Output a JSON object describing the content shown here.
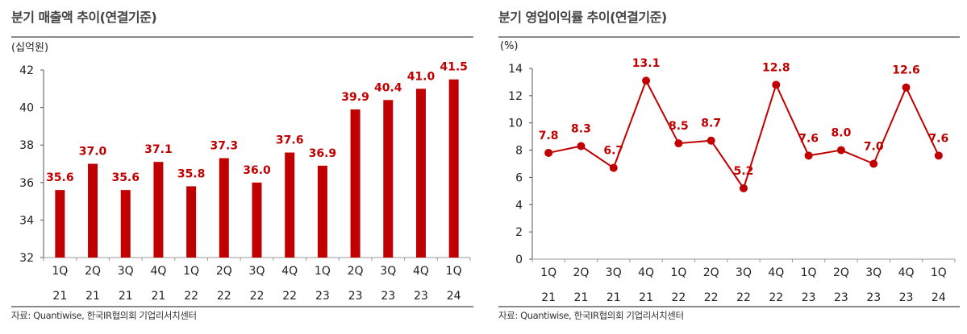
{
  "chart_data": [
    {
      "type": "bar",
      "title": "분기 매출액 추이(연결기준)",
      "ylabel": "(십억원)",
      "categories": [
        [
          "1Q",
          "21"
        ],
        [
          "2Q",
          "21"
        ],
        [
          "3Q",
          "21"
        ],
        [
          "4Q",
          "21"
        ],
        [
          "1Q",
          "22"
        ],
        [
          "2Q",
          "22"
        ],
        [
          "3Q",
          "22"
        ],
        [
          "4Q",
          "22"
        ],
        [
          "1Q",
          "23"
        ],
        [
          "2Q",
          "23"
        ],
        [
          "3Q",
          "23"
        ],
        [
          "4Q",
          "23"
        ],
        [
          "1Q",
          "24"
        ]
      ],
      "values": [
        35.6,
        37.0,
        35.6,
        37.1,
        35.8,
        37.3,
        36.0,
        37.6,
        36.9,
        39.9,
        40.4,
        41.0,
        41.5
      ],
      "labels": [
        "35.6",
        "37.0",
        "35.6",
        "37.1",
        "35.8",
        "37.3",
        "36.0",
        "37.6",
        "36.9",
        "39.9",
        "40.4",
        "41.0",
        "41.5"
      ],
      "ylim": [
        32,
        42
      ],
      "yticks": [
        "32",
        "34",
        "36",
        "38",
        "40",
        "42"
      ],
      "grid": false,
      "color": "#c00000",
      "source": "자료: Quantiwise, 한국IR협의회 기업리서치센터"
    },
    {
      "type": "line",
      "title": "분기 영업이익률 추이(연결기준)",
      "ylabel": "(%)",
      "categories": [
        [
          "1Q",
          "21"
        ],
        [
          "2Q",
          "21"
        ],
        [
          "3Q",
          "21"
        ],
        [
          "4Q",
          "21"
        ],
        [
          "1Q",
          "22"
        ],
        [
          "2Q",
          "22"
        ],
        [
          "3Q",
          "22"
        ],
        [
          "4Q",
          "22"
        ],
        [
          "1Q",
          "23"
        ],
        [
          "2Q",
          "23"
        ],
        [
          "3Q",
          "23"
        ],
        [
          "4Q",
          "23"
        ],
        [
          "1Q",
          "24"
        ]
      ],
      "values": [
        7.8,
        8.3,
        6.7,
        13.1,
        8.5,
        8.7,
        5.2,
        12.8,
        7.6,
        8.0,
        7.0,
        12.6,
        7.6
      ],
      "labels": [
        "7.8",
        "8.3",
        "6.7",
        "13.1",
        "8.5",
        "8.7",
        "5.2",
        "12.8",
        "7.6",
        "8.0",
        "7.0",
        "12.6",
        "7.6"
      ],
      "ylim": [
        0,
        14
      ],
      "yticks": [
        "0",
        "2",
        "4",
        "6",
        "8",
        "10",
        "12",
        "14"
      ],
      "grid": false,
      "color": "#c00000",
      "source": "자료: Quantiwise, 한국IR협의회 기업리서치센터"
    }
  ]
}
